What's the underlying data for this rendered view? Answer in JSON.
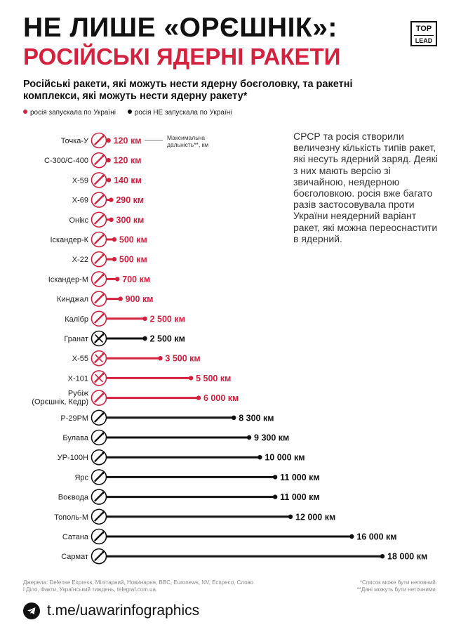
{
  "header": {
    "title_line1": "НЕ ЛИШЕ «ОРЄШНІК»:",
    "title_line2": "РОСІЙСЬКІ ЯДЕРНІ РАКЕТИ",
    "logo_top": "TOP",
    "logo_bottom": "LEAD",
    "subtitle": "Російські ракети, які можуть нести ядерну боєголовку, та ракетні комплекси, які можуть нести ядерну ракету*"
  },
  "legend": {
    "launched": "росія запускала по Україні",
    "not_launched": "росія НЕ запускала по Україні"
  },
  "description": "СРСР та росія створили величезну кількість типів ракет, які несуть ядерний заряд. Деякі з них мають версію зі звичайною, неядерною боєголовкою. росія вже багато разів застосовувала проти України неядерний варіант ракет, які можна переоснастити в ядерний.",
  "chart_annotation": "Максимальна дальність**, км",
  "colors": {
    "red": "#d4213d",
    "black": "#111111"
  },
  "chart_data": {
    "type": "bar",
    "title": "",
    "xlabel": "",
    "ylabel": "",
    "unit": "км",
    "categories": [
      "Точка-У",
      "С-300/С-400",
      "Х-59",
      "Х-69",
      "Онікс",
      "Іскандер-К",
      "Х-22",
      "Іскандер-М",
      "Кинджал",
      "Калібр",
      "Гранат",
      "Х-55",
      "Х-101",
      "Рубіж (Орєшнік, Кедр)",
      "Р-29РМ",
      "Булава",
      "УР-100Н",
      "Ярс",
      "Воєвода",
      "Тополь-М",
      "Сатана",
      "Сармат"
    ],
    "label_lines": [
      [
        "Точка-У"
      ],
      [
        "С-300/С-400"
      ],
      [
        "Х-59"
      ],
      [
        "Х-69"
      ],
      [
        "Онікс"
      ],
      [
        "Іскандер-К"
      ],
      [
        "Х-22"
      ],
      [
        "Іскандер-М"
      ],
      [
        "Кинджал"
      ],
      [
        "Калібр"
      ],
      [
        "Гранат"
      ],
      [
        "Х-55"
      ],
      [
        "Х-101"
      ],
      [
        "Рубіж",
        "(Орєшнік, Кедр)"
      ],
      [
        "Р-29РМ"
      ],
      [
        "Булава"
      ],
      [
        "УР-100Н"
      ],
      [
        "Ярс"
      ],
      [
        "Воєвода"
      ],
      [
        "Тополь-М"
      ],
      [
        "Сатана"
      ],
      [
        "Сармат"
      ]
    ],
    "values": [
      120,
      120,
      140,
      290,
      300,
      500,
      500,
      700,
      900,
      2500,
      2500,
      3500,
      5500,
      6000,
      8300,
      9300,
      10000,
      11000,
      11000,
      12000,
      16000,
      18000
    ],
    "value_labels": [
      "120 км",
      "120 км",
      "140 км",
      "290 км",
      "300 км",
      "500 км",
      "500 км",
      "700 км",
      "900 км",
      "2 500 км",
      "2 500 км",
      "3 500 км",
      "5 500 км",
      "6 000 км",
      "8 300 км",
      "9 300 км",
      "10 000 км",
      "11 000 км",
      "11 000 км",
      "12 000 км",
      "16 000 км",
      "18 000 км"
    ],
    "launched": [
      true,
      true,
      true,
      true,
      true,
      true,
      true,
      true,
      true,
      true,
      false,
      true,
      true,
      true,
      false,
      false,
      false,
      false,
      false,
      false,
      false,
      false
    ],
    "icon_names": [
      "missile-icon",
      "missile-icon",
      "missile-icon",
      "missile-icon",
      "missile-icon",
      "missile-icon",
      "missile-icon",
      "missile-icon",
      "missile-icon",
      "missile-icon",
      "crossed-missile-icon",
      "crossed-missile-icon",
      "crossed-missile-icon",
      "missile-icon",
      "missile-icon",
      "missile-icon",
      "missile-icon",
      "missile-icon",
      "missile-icon",
      "missile-icon",
      "missile-icon",
      "missile-icon"
    ],
    "xlim": [
      0,
      18000
    ]
  },
  "footer": {
    "sources": "Джерела: Defense Express, Мілітарний, Новинарня, BBC, Euronews, NV, Еспресо, Слово і Діло, Факти, Український тиждень, telegraf.com.ua.",
    "note1": "*Список може бути неповний.",
    "note2": "**Дані можуть бути неточними.",
    "link": "t.me/uawarinfographics",
    "telegram_icon": "telegram-icon"
  }
}
